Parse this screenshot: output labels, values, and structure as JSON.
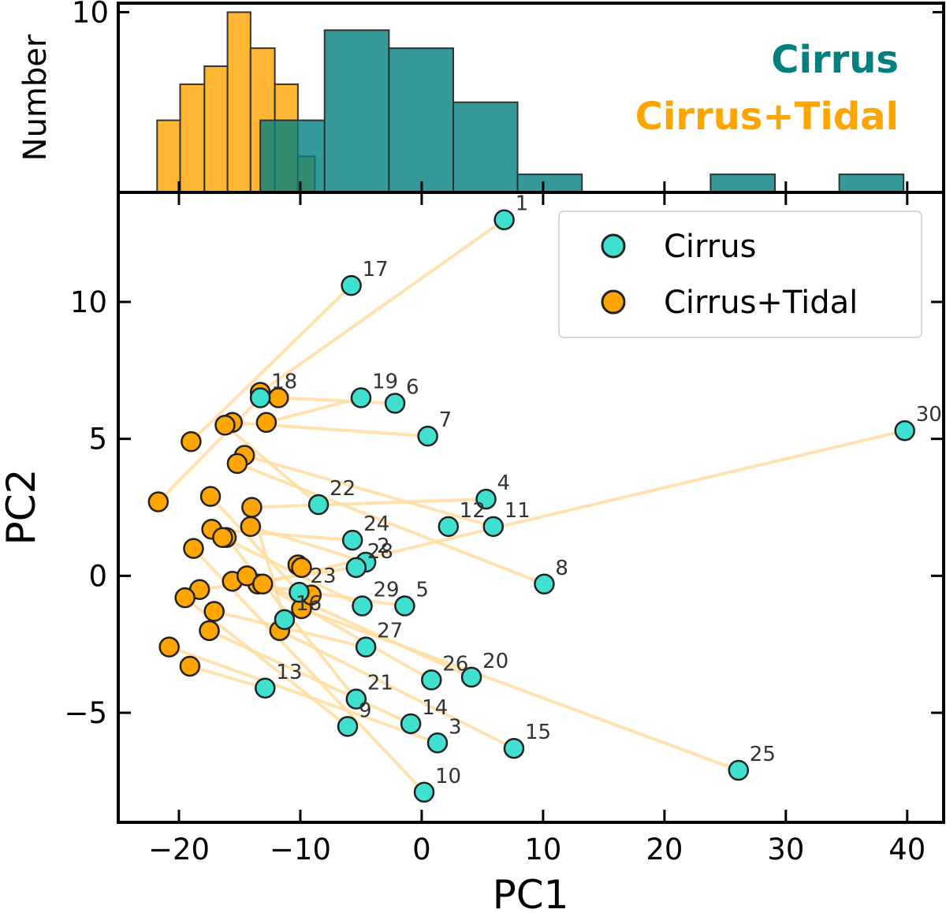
{
  "colors": {
    "cirrus": "#40E0D0",
    "cirrus_tidal": "#FFA500",
    "hist_cirrus": "#008080",
    "hist_cirrus_tidal": "#FFA500",
    "arrow": "#FFDDA0"
  },
  "chart_data": [
    {
      "type": "histogram",
      "ylabel": "Number",
      "ylim": [
        0,
        10.5
      ],
      "yticks": [
        {
          "value": 10,
          "label": "10"
        }
      ],
      "xlim": [
        -25,
        43
      ],
      "legend": {
        "position": "top-right",
        "entries": [
          "Cirrus",
          "Cirrus+Tidal"
        ]
      },
      "series": [
        {
          "name": "Cirrus",
          "color": "#008080",
          "bins": [
            {
              "x0": -13.3,
              "x1": -8.0,
              "count": 4
            },
            {
              "x0": -8.0,
              "x1": -2.7,
              "count": 9
            },
            {
              "x0": -2.7,
              "x1": 2.6,
              "count": 8
            },
            {
              "x0": 2.6,
              "x1": 7.9,
              "count": 5
            },
            {
              "x0": 7.9,
              "x1": 13.2,
              "count": 1
            },
            {
              "x0": 23.8,
              "x1": 29.1,
              "count": 1
            },
            {
              "x0": 34.4,
              "x1": 39.7,
              "count": 1
            }
          ]
        },
        {
          "name": "Cirrus+Tidal",
          "color": "#FFA500",
          "bins": [
            {
              "x0": -21.8,
              "x1": -19.9,
              "count": 4
            },
            {
              "x0": -19.9,
              "x1": -17.9,
              "count": 6
            },
            {
              "x0": -17.9,
              "x1": -16.0,
              "count": 7
            },
            {
              "x0": -16.0,
              "x1": -14.1,
              "count": 10
            },
            {
              "x0": -14.1,
              "x1": -12.1,
              "count": 8
            },
            {
              "x0": -12.1,
              "x1": -10.2,
              "count": 6
            },
            {
              "x0": -10.2,
              "x1": -8.8,
              "count": 2
            }
          ]
        }
      ]
    },
    {
      "type": "scatter",
      "xlabel": "PC1",
      "ylabel": "PC2",
      "xlim": [
        -25,
        43
      ],
      "ylim": [
        -9,
        14
      ],
      "xticks": [
        {
          "value": -20,
          "label": "−20"
        },
        {
          "value": -10,
          "label": "−10"
        },
        {
          "value": 0,
          "label": "0"
        },
        {
          "value": 10,
          "label": "10"
        },
        {
          "value": 20,
          "label": "20"
        },
        {
          "value": 30,
          "label": "30"
        },
        {
          "value": 40,
          "label": "40"
        }
      ],
      "yticks": [
        {
          "value": -5,
          "label": "−5"
        },
        {
          "value": 0,
          "label": "0"
        },
        {
          "value": 5,
          "label": "5"
        },
        {
          "value": 10,
          "label": "10"
        }
      ],
      "legend": {
        "position": "top-right",
        "entries": [
          "Cirrus",
          "Cirrus+Tidal"
        ]
      },
      "series": [
        {
          "name": "Cirrus",
          "color": "#40E0D0",
          "points": [
            {
              "label": "1",
              "x": 6.8,
              "y": 13.0
            },
            {
              "label": "2",
              "x": -4.6,
              "y": 0.5
            },
            {
              "label": "3",
              "x": 1.3,
              "y": -6.1
            },
            {
              "label": "4",
              "x": 5.3,
              "y": 2.8
            },
            {
              "label": "5",
              "x": -1.4,
              "y": -1.1
            },
            {
              "label": "6",
              "x": -2.2,
              "y": 6.3
            },
            {
              "label": "7",
              "x": 0.5,
              "y": 5.1
            },
            {
              "label": "8",
              "x": 10.1,
              "y": -0.3
            },
            {
              "label": "9",
              "x": -6.1,
              "y": -5.5
            },
            {
              "label": "10",
              "x": 0.2,
              "y": -7.9
            },
            {
              "label": "11",
              "x": 5.9,
              "y": 1.8
            },
            {
              "label": "12",
              "x": 2.2,
              "y": 1.8
            },
            {
              "label": "13",
              "x": -12.9,
              "y": -4.1
            },
            {
              "label": "14",
              "x": -0.9,
              "y": -5.4
            },
            {
              "label": "15",
              "x": 7.6,
              "y": -6.3
            },
            {
              "label": "16",
              "x": -11.3,
              "y": -1.6
            },
            {
              "label": "17",
              "x": -5.8,
              "y": 10.6
            },
            {
              "label": "18",
              "x": -13.3,
              "y": 6.5
            },
            {
              "label": "19",
              "x": -5.0,
              "y": 6.5
            },
            {
              "label": "20",
              "x": 4.1,
              "y": -3.7
            },
            {
              "label": "21",
              "x": -5.4,
              "y": -4.5
            },
            {
              "label": "22",
              "x": -8.5,
              "y": 2.6
            },
            {
              "label": "23",
              "x": -10.1,
              "y": -0.6
            },
            {
              "label": "24",
              "x": -5.7,
              "y": 1.3
            },
            {
              "label": "25",
              "x": 26.1,
              "y": -7.1
            },
            {
              "label": "26",
              "x": 0.8,
              "y": -3.8
            },
            {
              "label": "27",
              "x": -4.6,
              "y": -2.6
            },
            {
              "label": "28",
              "x": -5.4,
              "y": 0.3
            },
            {
              "label": "29",
              "x": -4.9,
              "y": -1.1
            },
            {
              "label": "30",
              "x": 39.8,
              "y": 5.3
            }
          ]
        },
        {
          "name": "Cirrus+Tidal",
          "color": "#FFA500",
          "points": [
            {
              "label": "1",
              "x": -13.3,
              "y": 6.7
            },
            {
              "label": "2",
              "x": -16.1,
              "y": 1.4
            },
            {
              "label": "3",
              "x": -17.1,
              "y": -1.3
            },
            {
              "label": "4",
              "x": -14.1,
              "y": 1.8
            },
            {
              "label": "5",
              "x": -13.5,
              "y": -0.3
            },
            {
              "label": "6",
              "x": -15.6,
              "y": 5.6
            },
            {
              "label": "7",
              "x": -14.6,
              "y": 4.4
            },
            {
              "label": "8",
              "x": -15.6,
              "y": -0.2
            },
            {
              "label": "9",
              "x": -19.1,
              "y": -3.3
            },
            {
              "label": "10",
              "x": -20.8,
              "y": -2.6
            },
            {
              "label": "11",
              "x": -14.0,
              "y": 2.5
            },
            {
              "label": "12",
              "x": -16.2,
              "y": 5.5
            },
            {
              "label": "13",
              "x": -17.5,
              "y": -2.0
            },
            {
              "label": "14",
              "x": -18.3,
              "y": -0.5
            },
            {
              "label": "15",
              "x": -19.5,
              "y": -0.8
            },
            {
              "label": "16",
              "x": -11.7,
              "y": -2.0
            },
            {
              "label": "17",
              "x": -21.7,
              "y": 2.7
            },
            {
              "label": "18",
              "x": -11.8,
              "y": 6.5
            },
            {
              "label": "19",
              "x": -12.8,
              "y": 5.6
            },
            {
              "label": "20",
              "x": -18.8,
              "y": 1.0
            },
            {
              "label": "21",
              "x": -15.2,
              "y": 4.1
            },
            {
              "label": "22",
              "x": -17.3,
              "y": 1.7
            },
            {
              "label": "23",
              "x": -10.2,
              "y": 0.4
            },
            {
              "label": "24",
              "x": -17.4,
              "y": 2.9
            },
            {
              "label": "25",
              "x": -9.9,
              "y": 0.3
            },
            {
              "label": "26",
              "x": -14.4,
              "y": 0.0
            },
            {
              "label": "27",
              "x": -16.4,
              "y": 1.4
            },
            {
              "label": "28",
              "x": -19.0,
              "y": 4.9
            },
            {
              "label": "29",
              "x": -13.1,
              "y": -0.3
            },
            {
              "label": "30",
              "x": -9.9,
              "y": -1.2
            },
            {
              "label": "31",
              "x": -9.1,
              "y": -0.7
            }
          ]
        }
      ],
      "arrows": [
        {
          "from": {
            "x": 6.8,
            "y": 13.0
          },
          "to": {
            "x": -13.3,
            "y": 6.7
          }
        },
        {
          "from": {
            "x": -5.8,
            "y": 10.6
          },
          "to": {
            "x": -19.0,
            "y": 4.9
          }
        },
        {
          "from": {
            "x": -5.0,
            "y": 6.5
          },
          "to": {
            "x": -12.8,
            "y": 5.6
          }
        },
        {
          "from": {
            "x": -2.2,
            "y": 6.3
          },
          "to": {
            "x": -11.8,
            "y": 6.5
          }
        },
        {
          "from": {
            "x": 0.5,
            "y": 5.1
          },
          "to": {
            "x": -15.6,
            "y": 5.6
          }
        },
        {
          "from": {
            "x": 39.8,
            "y": 5.3
          },
          "to": {
            "x": -13.5,
            "y": -0.3
          }
        },
        {
          "from": {
            "x": 5.3,
            "y": 2.8
          },
          "to": {
            "x": -14.0,
            "y": 2.5
          }
        },
        {
          "from": {
            "x": 5.9,
            "y": 1.8
          },
          "to": {
            "x": -14.6,
            "y": 4.4
          }
        },
        {
          "from": {
            "x": 10.1,
            "y": -0.3
          },
          "to": {
            "x": -15.2,
            "y": 4.1
          }
        },
        {
          "from": {
            "x": -8.5,
            "y": 2.6
          },
          "to": {
            "x": -16.2,
            "y": 5.5
          }
        },
        {
          "from": {
            "x": -5.7,
            "y": 1.3
          },
          "to": {
            "x": -17.3,
            "y": 1.7
          }
        },
        {
          "from": {
            "x": -4.6,
            "y": 0.5
          },
          "to": {
            "x": -14.1,
            "y": 1.8
          }
        },
        {
          "from": {
            "x": -5.4,
            "y": 0.3
          },
          "to": {
            "x": -18.3,
            "y": -0.5
          }
        },
        {
          "from": {
            "x": -1.4,
            "y": -1.1
          },
          "to": {
            "x": -15.6,
            "y": -0.2
          }
        },
        {
          "from": {
            "x": -4.9,
            "y": -1.1
          },
          "to": {
            "x": -16.4,
            "y": 1.4
          }
        },
        {
          "from": {
            "x": -4.6,
            "y": -2.6
          },
          "to": {
            "x": -17.1,
            "y": -1.3
          }
        },
        {
          "from": {
            "x": 0.8,
            "y": -3.8
          },
          "to": {
            "x": -13.1,
            "y": -0.3
          }
        },
        {
          "from": {
            "x": 4.1,
            "y": -3.7
          },
          "to": {
            "x": -14.4,
            "y": 0.0
          }
        },
        {
          "from": {
            "x": 26.1,
            "y": -7.1
          },
          "to": {
            "x": -9.9,
            "y": -1.2
          }
        },
        {
          "from": {
            "x": 7.6,
            "y": -6.3
          },
          "to": {
            "x": -11.7,
            "y": -2.0
          }
        },
        {
          "from": {
            "x": -0.9,
            "y": -5.4
          },
          "to": {
            "x": -17.5,
            "y": -2.0
          }
        },
        {
          "from": {
            "x": 1.3,
            "y": -6.1
          },
          "to": {
            "x": -20.8,
            "y": -2.6
          }
        },
        {
          "from": {
            "x": 0.2,
            "y": -7.9
          },
          "to": {
            "x": -18.8,
            "y": 1.0
          }
        },
        {
          "from": {
            "x": -6.1,
            "y": -5.5
          },
          "to": {
            "x": -19.5,
            "y": -0.8
          }
        },
        {
          "from": {
            "x": -5.4,
            "y": -4.5
          },
          "to": {
            "x": -16.1,
            "y": 1.4
          }
        },
        {
          "from": {
            "x": -12.9,
            "y": -4.1
          },
          "to": {
            "x": -19.1,
            "y": -3.3
          }
        },
        {
          "from": {
            "x": -11.3,
            "y": -1.6
          },
          "to": {
            "x": -14.0,
            "y": 2.5
          }
        },
        {
          "from": {
            "x": -10.1,
            "y": -0.6
          },
          "to": {
            "x": -17.4,
            "y": 2.9
          }
        },
        {
          "from": {
            "x": -13.3,
            "y": 6.5
          },
          "to": {
            "x": -21.7,
            "y": 2.7
          }
        }
      ]
    }
  ]
}
